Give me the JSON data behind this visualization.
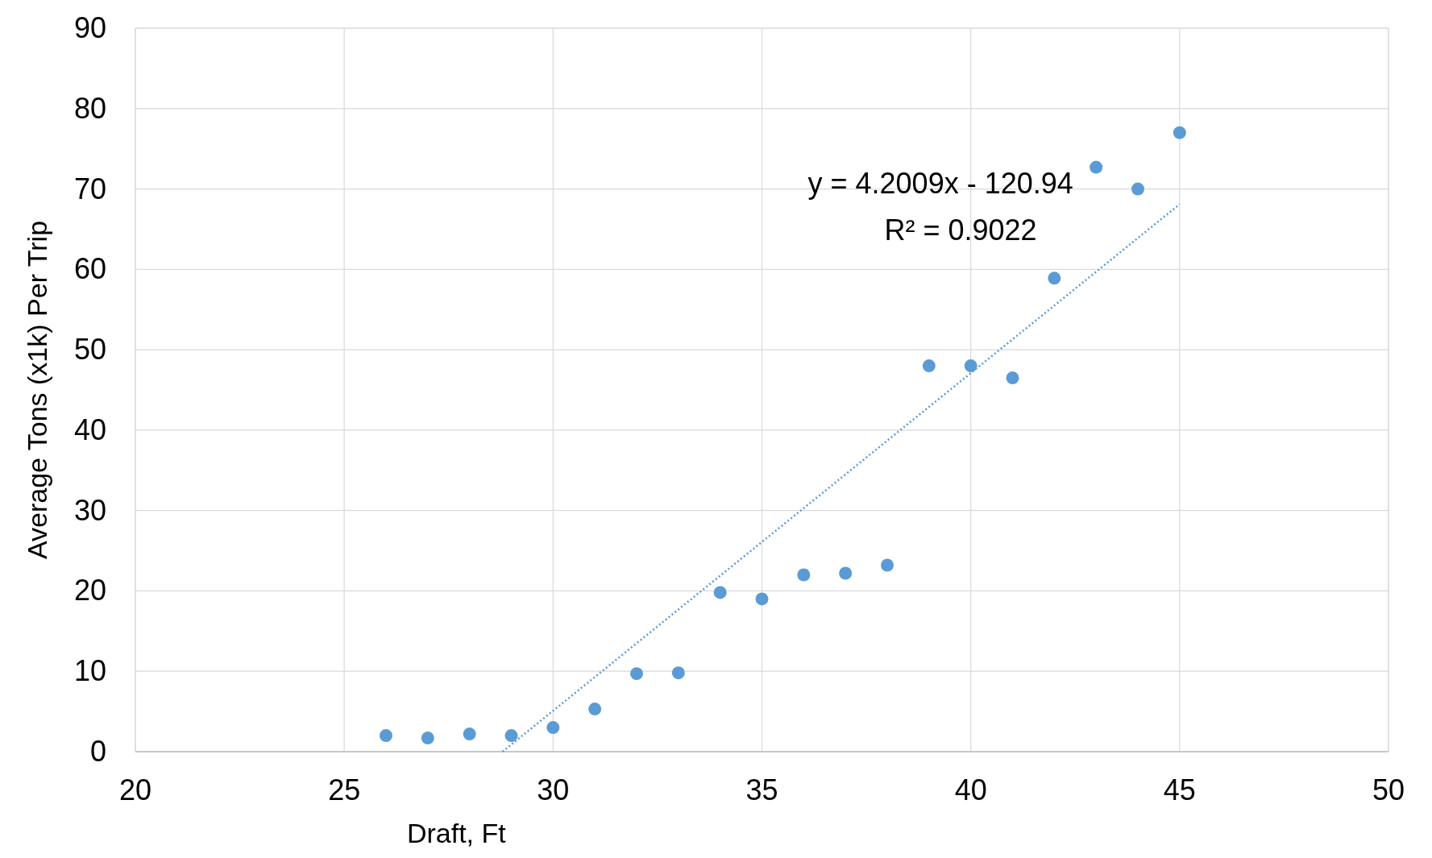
{
  "chart_data": {
    "type": "scatter",
    "xlabel": "Draft, Ft",
    "ylabel": "Average Tons (x1k) Per Trip",
    "xlim": [
      20,
      50
    ],
    "xticks": [
      20,
      25,
      30,
      35,
      40,
      45,
      50
    ],
    "ylim": [
      0,
      90
    ],
    "yticks": [
      0,
      10,
      20,
      30,
      40,
      50,
      60,
      70,
      80,
      90
    ],
    "grid": true,
    "series": [
      {
        "marker": "circle",
        "color": "#5b9bd5",
        "x": [
          26,
          27,
          28,
          29,
          30,
          31,
          32,
          33,
          34,
          35,
          36,
          37,
          38,
          39,
          40,
          41,
          42,
          43,
          44,
          45
        ],
        "values": [
          2,
          1.7,
          2.2,
          2,
          3,
          5.3,
          9.7,
          9.8,
          19.8,
          19,
          22,
          22.2,
          23.2,
          48,
          48,
          46.5,
          58.9,
          72.7,
          70,
          77
        ]
      },
      {
        "type": "line",
        "marker": "none",
        "color": "#5b9bd5",
        "line_style": "dotted",
        "x": [
          28.79,
          45
        ],
        "values": [
          0,
          68.1
        ]
      }
    ],
    "annotations": [
      "y = 4.2009x - 120.94",
      "R² = 0.9022"
    ]
  }
}
